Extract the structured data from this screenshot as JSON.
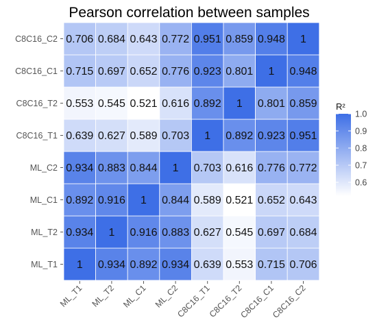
{
  "chart_data": {
    "type": "heatmap",
    "title": "Pearson correlation between samples",
    "x_labels": [
      "ML_T1",
      "ML_T2",
      "ML_C1",
      "ML_C2",
      "C8C16_T1",
      "C8C16_T2",
      "C8C16_C1",
      "C8C16_C2"
    ],
    "y_labels": [
      "ML_T1",
      "ML_T2",
      "ML_C1",
      "ML_C2",
      "C8C16_T1",
      "C8C16_T2",
      "C8C16_C1",
      "C8C16_C2"
    ],
    "values": [
      [
        1,
        0.934,
        0.892,
        0.934,
        0.639,
        0.553,
        0.715,
        0.706
      ],
      [
        0.934,
        1,
        0.916,
        0.883,
        0.627,
        0.545,
        0.697,
        0.684
      ],
      [
        0.892,
        0.916,
        1,
        0.844,
        0.589,
        0.521,
        0.652,
        0.643
      ],
      [
        0.934,
        0.883,
        0.844,
        1,
        0.703,
        0.616,
        0.776,
        0.772
      ],
      [
        0.639,
        0.627,
        0.589,
        0.703,
        1,
        0.892,
        0.923,
        0.951
      ],
      [
        0.553,
        0.545,
        0.521,
        0.616,
        0.892,
        1,
        0.801,
        0.859
      ],
      [
        0.715,
        0.697,
        0.652,
        0.776,
        0.923,
        0.801,
        1,
        0.948
      ],
      [
        0.706,
        0.684,
        0.643,
        0.772,
        0.951,
        0.859,
        0.948,
        1
      ]
    ],
    "legend": {
      "title": "R²",
      "ticks": [
        "1.0",
        "0.9",
        "0.8",
        "0.7",
        "0.6"
      ],
      "tick_values": [
        1.0,
        0.9,
        0.8,
        0.7,
        0.6
      ],
      "range": [
        0.52,
        1.0
      ],
      "color_low": "#ffffff",
      "color_high": "#3e6fe6"
    },
    "grid": false,
    "legend_placement": "right"
  }
}
